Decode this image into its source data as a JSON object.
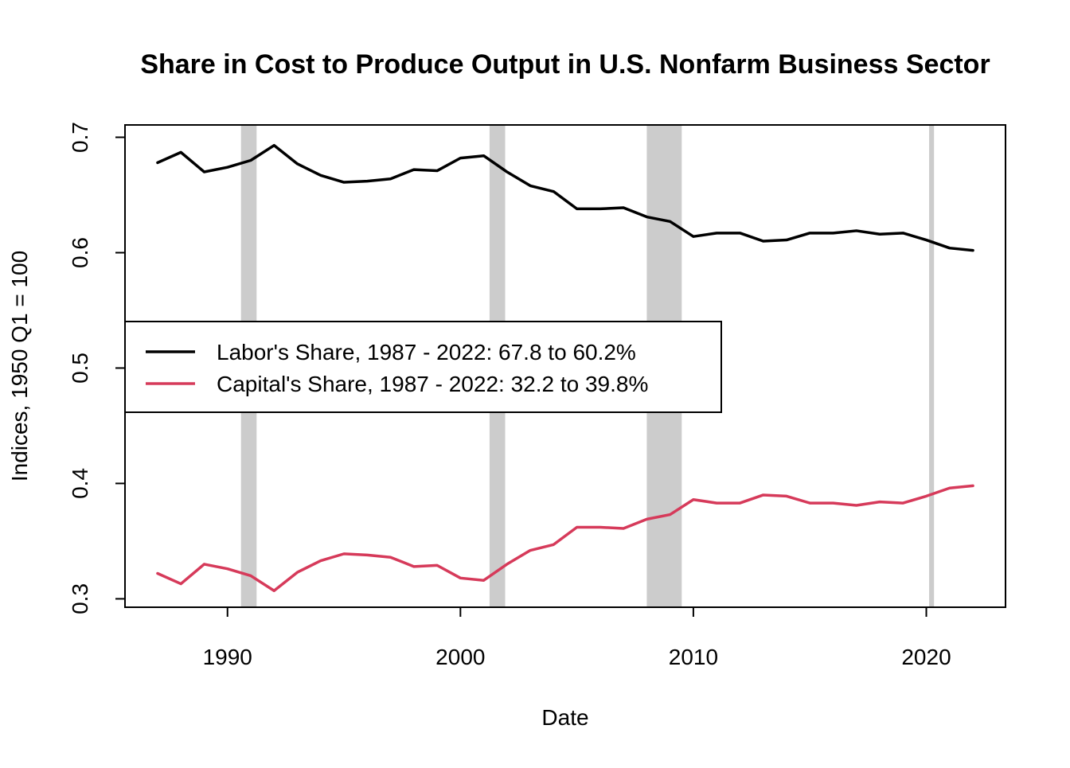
{
  "chart_data": {
    "type": "line",
    "title": "Share in Cost to Produce Output in U.S. Nonfarm Business Sector",
    "xlabel": "Date",
    "ylabel": "Indices, 1950 Q1 = 100",
    "xlim": [
      1985.6,
      2023.4
    ],
    "ylim": [
      0.2927,
      0.7107
    ],
    "x_ticks": [
      1990,
      2000,
      2010,
      2020
    ],
    "x_tick_labels": [
      "1990",
      "2000",
      "2010",
      "2020"
    ],
    "y_ticks": [
      0.3,
      0.4,
      0.5,
      0.6,
      0.7
    ],
    "y_tick_labels": [
      "0.3",
      "0.4",
      "0.5",
      "0.6",
      "0.7"
    ],
    "recession_periods": [
      [
        1990.58,
        1991.25
      ],
      [
        2001.25,
        2001.92
      ],
      [
        2008.0,
        2009.5
      ],
      [
        2020.12,
        2020.33
      ]
    ],
    "recession_color": "#cccccc",
    "x": [
      1987,
      1988,
      1989,
      1990,
      1991,
      1992,
      1993,
      1994,
      1995,
      1996,
      1997,
      1998,
      1999,
      2000,
      2001,
      2002,
      2003,
      2004,
      2005,
      2006,
      2007,
      2008,
      2009,
      2010,
      2011,
      2012,
      2013,
      2014,
      2015,
      2016,
      2017,
      2018,
      2019,
      2020,
      2021,
      2022
    ],
    "series": [
      {
        "name": "Labor's Share, 1987 - 2022: 67.8 to 60.2%",
        "color": "#000000",
        "values": [
          0.678,
          0.687,
          0.67,
          0.674,
          0.68,
          0.693,
          0.677,
          0.667,
          0.661,
          0.662,
          0.664,
          0.672,
          0.671,
          0.682,
          0.684,
          0.67,
          0.658,
          0.653,
          0.638,
          0.638,
          0.639,
          0.631,
          0.627,
          0.614,
          0.617,
          0.617,
          0.61,
          0.611,
          0.617,
          0.617,
          0.619,
          0.616,
          0.617,
          0.611,
          0.604,
          0.602
        ]
      },
      {
        "name": "Capital's Share, 1987 - 2022: 32.2 to 39.8%",
        "color": "#d63a5a",
        "values": [
          0.322,
          0.313,
          0.33,
          0.326,
          0.32,
          0.307,
          0.323,
          0.333,
          0.339,
          0.338,
          0.336,
          0.328,
          0.329,
          0.318,
          0.316,
          0.33,
          0.342,
          0.347,
          0.362,
          0.362,
          0.361,
          0.369,
          0.373,
          0.386,
          0.383,
          0.383,
          0.39,
          0.389,
          0.383,
          0.383,
          0.381,
          0.384,
          0.383,
          0.389,
          0.396,
          0.398
        ]
      }
    ],
    "legend_position": "center-left"
  }
}
